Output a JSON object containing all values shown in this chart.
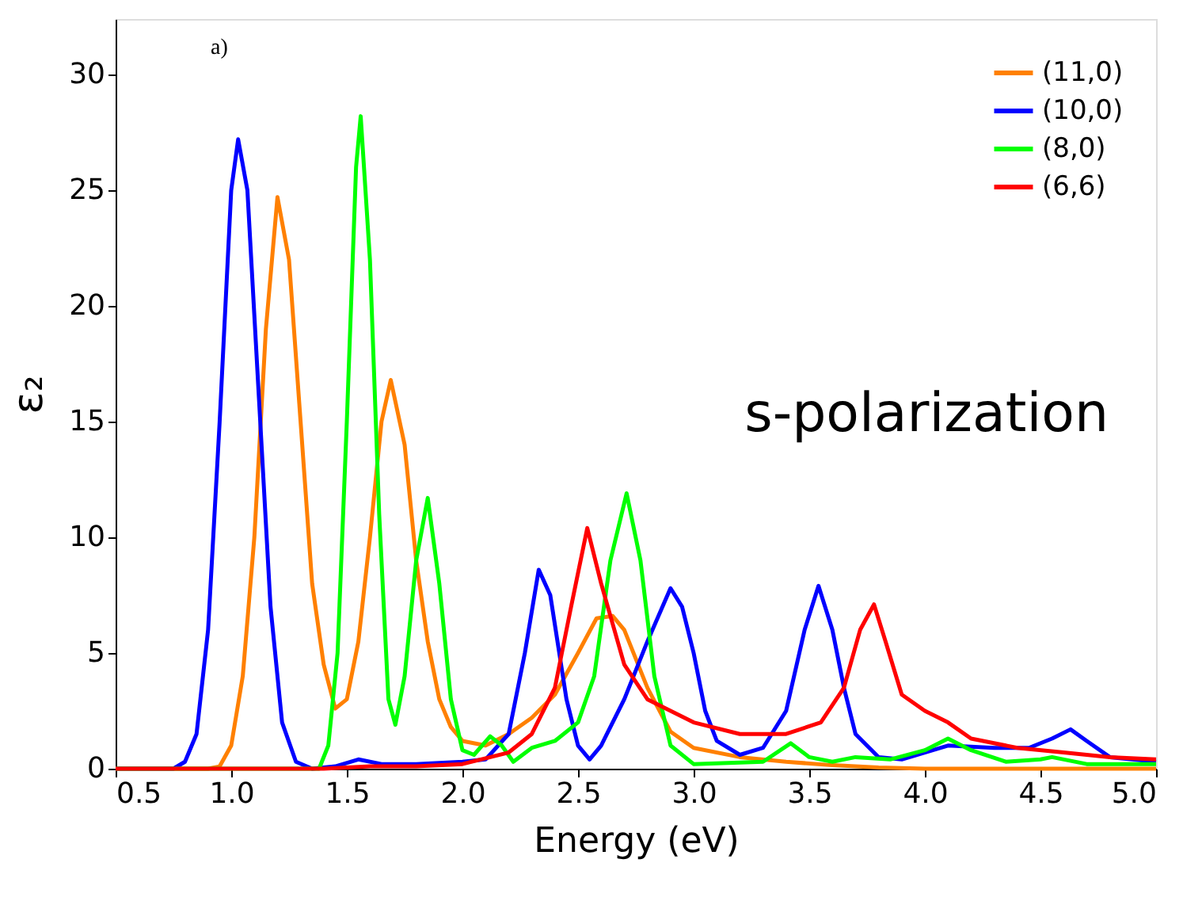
{
  "chart_data": {
    "type": "line",
    "xlabel": "Energy (eV)",
    "ylabel": "ε₂",
    "annotations": [
      "a)",
      "s-polarization"
    ],
    "xlim": [
      0.5,
      5.0
    ],
    "ylim": [
      0,
      32.4
    ],
    "xticks": [
      0.5,
      {
        "value": 1,
        "label": "1.0"
      },
      1.5,
      {
        "value": 2,
        "label": "2.0"
      },
      2.5,
      {
        "value": 3,
        "label": "3.0"
      },
      3.5,
      {
        "value": 4,
        "label": "4.0"
      },
      4.5,
      {
        "value": 5,
        "label": "5.0"
      }
    ],
    "yticks": [
      0,
      5,
      10,
      15,
      20,
      25,
      30
    ],
    "grid": false,
    "legend": "top right",
    "marker": "none",
    "line_style": "solid",
    "series": [
      {
        "name": "(11,0)",
        "color": "#ff8000",
        "x": [
          0.5,
          0.9,
          0.95,
          1.0,
          1.05,
          1.1,
          1.15,
          1.2,
          1.25,
          1.3,
          1.35,
          1.4,
          1.45,
          1.5,
          1.55,
          1.6,
          1.65,
          1.69,
          1.75,
          1.8,
          1.85,
          1.9,
          1.95,
          2.0,
          2.1,
          2.2,
          2.3,
          2.4,
          2.5,
          2.58,
          2.65,
          2.7,
          2.8,
          2.9,
          3.0,
          3.2,
          3.4,
          3.6,
          3.8,
          4.0,
          5.0
        ],
        "values": [
          0,
          0,
          0.1,
          1,
          4,
          10,
          19,
          24.7,
          22,
          15,
          8,
          4.5,
          2.6,
          3,
          5.5,
          10,
          15,
          16.8,
          14,
          9,
          5.5,
          3,
          1.8,
          1.2,
          1,
          1.5,
          2.2,
          3.2,
          5,
          6.5,
          6.6,
          6,
          3.5,
          1.6,
          0.9,
          0.5,
          0.3,
          0.15,
          0.05,
          0,
          0
        ]
      },
      {
        "name": "(10,0)",
        "color": "#0000ff",
        "x": [
          0.5,
          0.75,
          0.8,
          0.85,
          0.9,
          0.95,
          1.0,
          1.03,
          1.07,
          1.12,
          1.17,
          1.22,
          1.28,
          1.35,
          1.45,
          1.55,
          1.65,
          1.8,
          2.0,
          2.1,
          2.2,
          2.27,
          2.33,
          2.38,
          2.45,
          2.5,
          2.55,
          2.6,
          2.7,
          2.8,
          2.9,
          2.95,
          3.0,
          3.05,
          3.1,
          3.2,
          3.3,
          3.4,
          3.48,
          3.54,
          3.6,
          3.65,
          3.7,
          3.8,
          3.9,
          4.0,
          4.1,
          4.3,
          4.45,
          4.55,
          4.63,
          4.7,
          4.8,
          5.0
        ],
        "values": [
          0,
          0,
          0.3,
          1.5,
          6,
          15,
          25,
          27.2,
          25,
          16,
          7,
          2,
          0.3,
          0,
          0.1,
          0.4,
          0.2,
          0.2,
          0.3,
          0.4,
          1.5,
          5,
          8.6,
          7.5,
          3,
          1,
          0.4,
          1,
          3,
          5.5,
          7.8,
          7,
          5,
          2.5,
          1.2,
          0.6,
          0.9,
          2.5,
          6,
          7.9,
          6,
          3.5,
          1.5,
          0.5,
          0.4,
          0.7,
          1,
          0.9,
          0.9,
          1.3,
          1.7,
          1.2,
          0.5,
          0.3
        ]
      },
      {
        "name": "(8,0)",
        "color": "#00ff00",
        "x": [
          0.5,
          1.38,
          1.42,
          1.46,
          1.5,
          1.54,
          1.56,
          1.6,
          1.64,
          1.68,
          1.71,
          1.75,
          1.8,
          1.85,
          1.9,
          1.95,
          2.0,
          2.05,
          2.12,
          2.17,
          2.22,
          2.3,
          2.4,
          2.5,
          2.57,
          2.64,
          2.71,
          2.77,
          2.83,
          2.9,
          3.0,
          3.3,
          3.42,
          3.5,
          3.6,
          3.7,
          3.85,
          4.0,
          4.1,
          4.2,
          4.35,
          4.5,
          4.55,
          4.7,
          5.0
        ],
        "values": [
          0,
          0,
          1,
          5,
          15,
          26,
          28.2,
          22,
          11,
          3,
          1.9,
          4,
          9,
          11.7,
          8,
          3,
          0.8,
          0.6,
          1.4,
          1,
          0.3,
          0.9,
          1.2,
          2,
          4,
          9,
          11.9,
          9,
          4,
          1,
          0.2,
          0.3,
          1.1,
          0.5,
          0.3,
          0.5,
          0.4,
          0.8,
          1.3,
          0.8,
          0.3,
          0.4,
          0.5,
          0.2,
          0.2
        ]
      },
      {
        "name": "(6,6)",
        "color": "#ff0000",
        "x": [
          0.5,
          1.4,
          1.6,
          1.8,
          2.0,
          2.2,
          2.3,
          2.4,
          2.47,
          2.54,
          2.6,
          2.7,
          2.8,
          3.0,
          3.2,
          3.4,
          3.55,
          3.65,
          3.72,
          3.78,
          3.83,
          3.9,
          4.0,
          4.1,
          4.2,
          4.4,
          4.6,
          4.8,
          5.0
        ],
        "values": [
          0,
          0,
          0.1,
          0.1,
          0.2,
          0.7,
          1.5,
          3.5,
          7,
          10.4,
          8,
          4.5,
          3,
          2,
          1.5,
          1.5,
          2,
          3.5,
          6,
          7.1,
          5.5,
          3.2,
          2.5,
          2,
          1.3,
          0.9,
          0.7,
          0.5,
          0.4
        ]
      }
    ]
  }
}
